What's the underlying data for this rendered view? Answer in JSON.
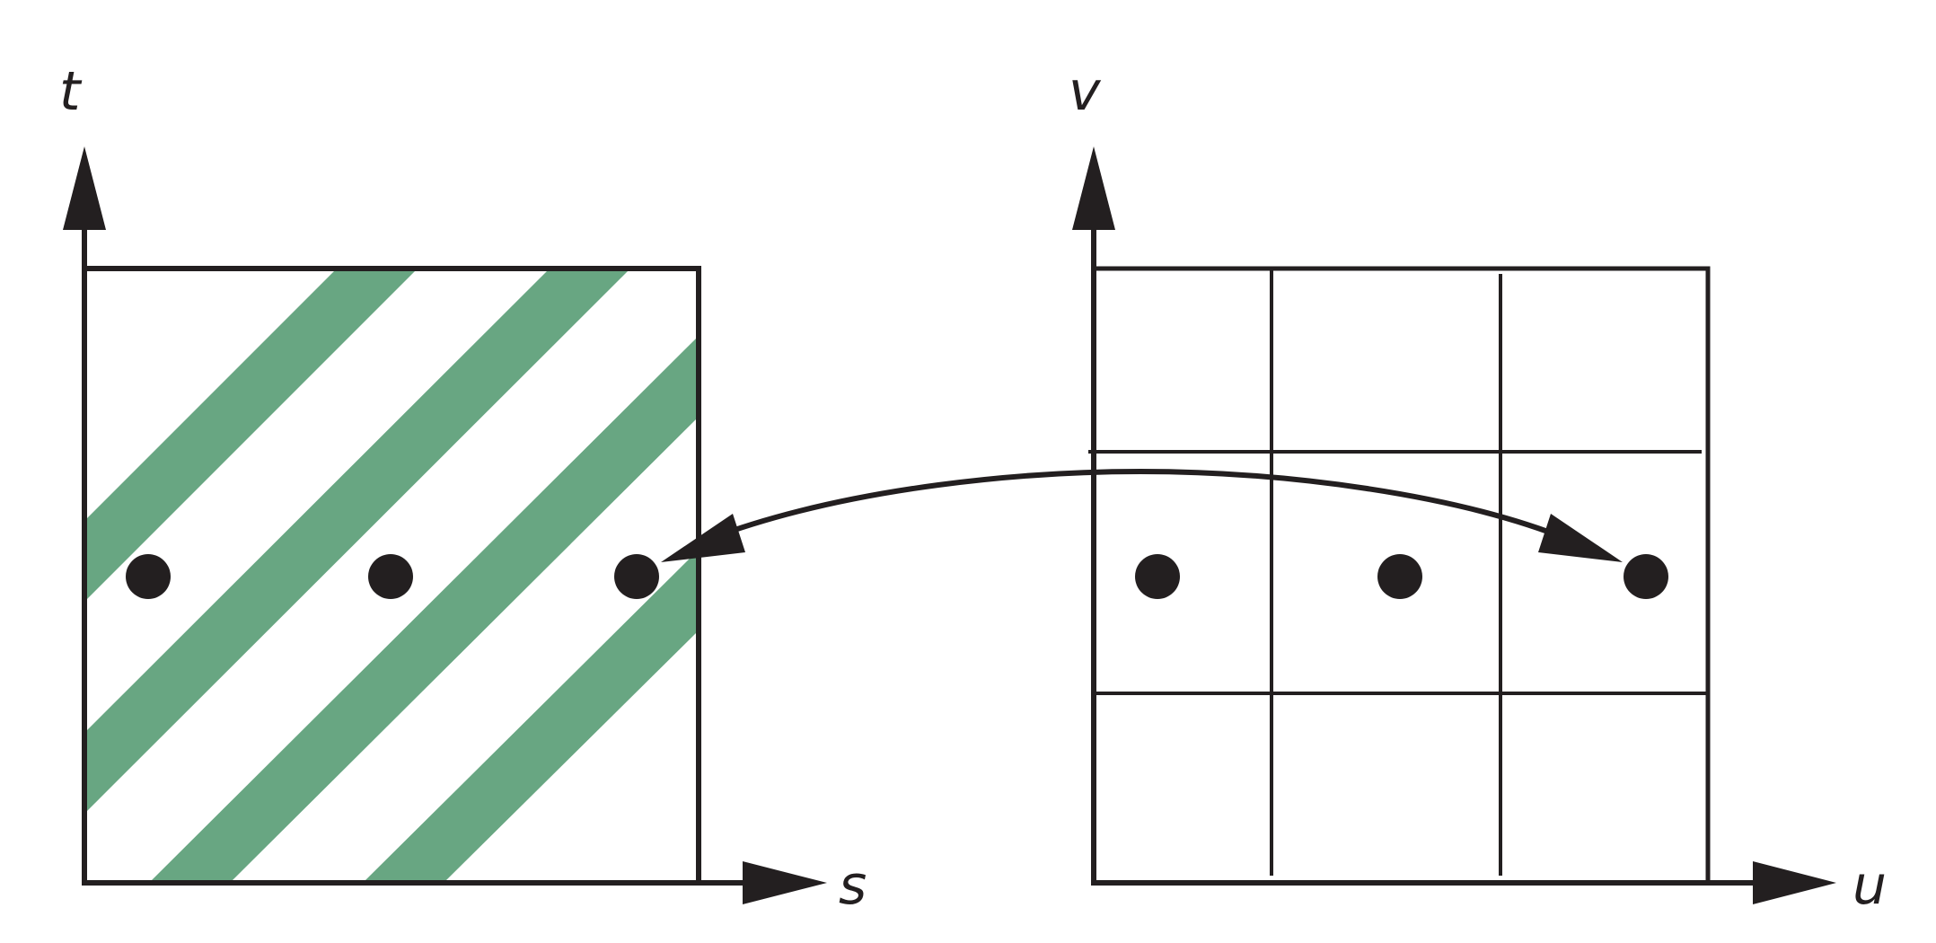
{
  "colors": {
    "ink": "#231f20",
    "stripe": "#68a682",
    "background": "#ffffff"
  },
  "left_panel": {
    "x_axis_label": "s",
    "y_axis_label": "t"
  },
  "right_panel": {
    "x_axis_label": "u",
    "y_axis_label": "v"
  }
}
